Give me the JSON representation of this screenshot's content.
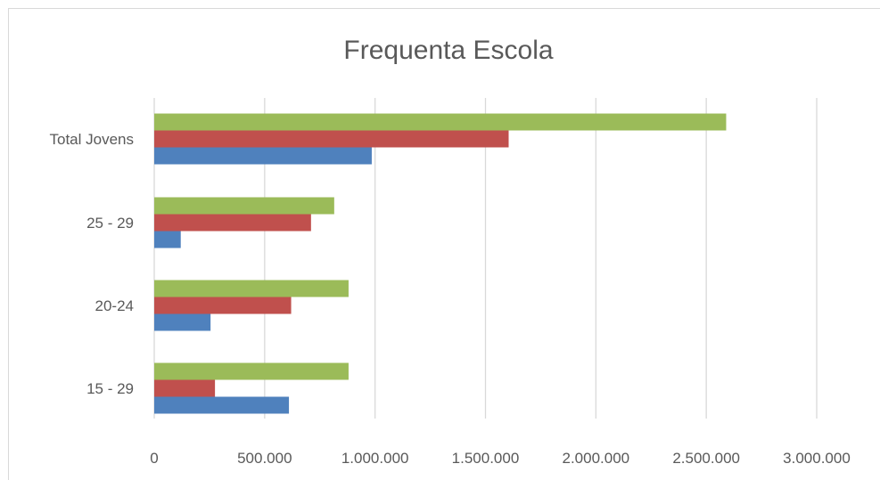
{
  "chart_data": {
    "type": "bar",
    "orientation": "horizontal",
    "title": "Frequenta Escola",
    "categories": [
      "Total Jovens",
      "25 - 29",
      "20-24",
      "15 - 29"
    ],
    "series": [
      {
        "color": "#4f81bd",
        "values": [
          985000,
          120000,
          255000,
          610000
        ]
      },
      {
        "color": "#c0504d",
        "values": [
          1605000,
          710000,
          620000,
          275000
        ]
      },
      {
        "color": "#9bbb59",
        "values": [
          2590000,
          815000,
          880000,
          880000
        ]
      }
    ],
    "xlim": [
      0,
      3000000
    ],
    "x_ticks": [
      "0",
      "500.000",
      "1.000.000",
      "1.500.000",
      "2.000.000",
      "2.500.000",
      "3.000.000"
    ],
    "grid": true,
    "legend": "none"
  }
}
